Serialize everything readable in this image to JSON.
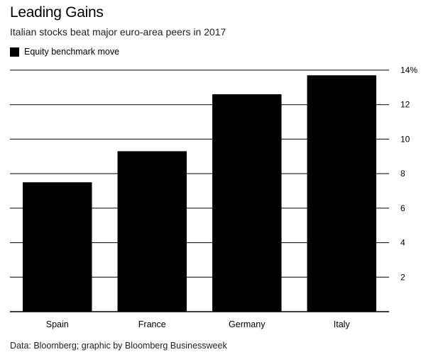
{
  "chart_data": {
    "type": "bar",
    "title": "Leading Gains",
    "subtitle": "Italian stocks beat major euro-area peers in 2017",
    "legend": "Equity benchmark move",
    "categories": [
      "Spain",
      "France",
      "Germany",
      "Italy"
    ],
    "values": [
      7.5,
      9.3,
      12.6,
      13.7
    ],
    "ylim": [
      0,
      14
    ],
    "yticks": [
      2,
      4,
      6,
      8,
      10,
      12,
      14
    ],
    "ytick_labels": [
      "2",
      "4",
      "6",
      "8",
      "10",
      "12",
      "14%"
    ],
    "xlabel": "",
    "ylabel": "",
    "grid": true,
    "bar_color": "#000000",
    "source": "Data: Bloomberg; graphic by Bloomberg Businessweek"
  }
}
